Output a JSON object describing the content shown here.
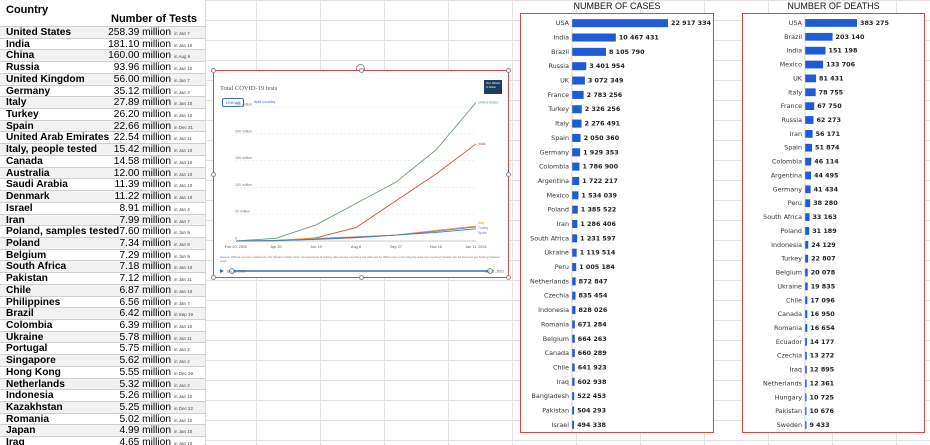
{
  "tests_table": {
    "header_country": "Country",
    "header_tests": "Number of Tests",
    "rows": [
      {
        "country": "United States",
        "value": "258.39 million",
        "date": "in Jan 7"
      },
      {
        "country": "India",
        "value": "181.10 million",
        "date": "in Jan 10"
      },
      {
        "country": "China",
        "value": "160.00 million",
        "date": "in Aug 6"
      },
      {
        "country": "Russia",
        "value": "93.96 million",
        "date": "in Jan 10"
      },
      {
        "country": "United Kingdom",
        "value": "56.00 million",
        "date": "in Jan 7"
      },
      {
        "country": "Germany",
        "value": "35.12 million",
        "date": "in Jan 3"
      },
      {
        "country": "Italy",
        "value": "27.89 million",
        "date": "in Jan 10"
      },
      {
        "country": "Turkey",
        "value": "26.20 million",
        "date": "in Jan 10"
      },
      {
        "country": "Spain",
        "value": "22.66 million",
        "date": "in Dec 31"
      },
      {
        "country": "United Arab Emirates",
        "value": "22.54 million",
        "date": "in Jan 11"
      },
      {
        "country": "Italy, people tested",
        "value": "15.42 million",
        "date": "in Jan 10"
      },
      {
        "country": "Canada",
        "value": "14.58 million",
        "date": "in Jan 10"
      },
      {
        "country": "Australia",
        "value": "12.00 million",
        "date": "in Jan 10"
      },
      {
        "country": "Saudi Arabia",
        "value": "11.39 million",
        "date": "in Jan 10"
      },
      {
        "country": "Denmark",
        "value": "11.22 million",
        "date": "in Jan 10"
      },
      {
        "country": "Israel",
        "value": "8.91 million",
        "date": "in Jan 4"
      },
      {
        "country": "Iran",
        "value": "7.99 million",
        "date": "in Jan 7"
      },
      {
        "country": "Poland, samples tested",
        "value": "7.60 million",
        "date": "in Jan 9"
      },
      {
        "country": "Poland",
        "value": "7.34 million",
        "date": "in Jan 9"
      },
      {
        "country": "Belgium",
        "value": "7.29 million",
        "date": "in Jan 9"
      },
      {
        "country": "South Africa",
        "value": "7.18 million",
        "date": "in Jan 10"
      },
      {
        "country": "Pakistan",
        "value": "7.12 million",
        "date": "in Jan 11"
      },
      {
        "country": "Chile",
        "value": "6.87 million",
        "date": "in Jan 10"
      },
      {
        "country": "Philippines",
        "value": "6.56 million",
        "date": "in Jan 7"
      },
      {
        "country": "Brazil",
        "value": "6.42 million",
        "date": "in Sep 19"
      },
      {
        "country": "Colombia",
        "value": "6.39 million",
        "date": "in Jan 10"
      },
      {
        "country": "Ukraine",
        "value": "5.78 million",
        "date": "in Jan 11"
      },
      {
        "country": "Portugal",
        "value": "5.75 million",
        "date": "in Jan 2"
      },
      {
        "country": "Singapore",
        "value": "5.62 million",
        "date": "in Jan 4"
      },
      {
        "country": "Hong Kong",
        "value": "5.55 million",
        "date": "in Dec 29"
      },
      {
        "country": "Netherlands",
        "value": "5.32 million",
        "date": "in Jan 3"
      },
      {
        "country": "Indonesia",
        "value": "5.26 million",
        "date": "in Jan 10"
      },
      {
        "country": "Kazakhstan",
        "value": "5.25 million",
        "date": "in Dec 22"
      },
      {
        "country": "Romania",
        "value": "5.02 million",
        "date": "in Jan 10"
      },
      {
        "country": "Japan",
        "value": "4.99 million",
        "date": "in Jan 10"
      },
      {
        "country": "Iraq",
        "value": "4.65 million",
        "date": "in Jan 10"
      }
    ]
  },
  "line_chart": {
    "title": "Total COVID-19 tests",
    "logo": "Our World in Data",
    "btn_linear": "LINEAR",
    "btn_log": "LOG",
    "add_countries": "Add country",
    "source": "Source: Official sources collated by Our World in Data. Note: Comparisons of testing data across countries are affected by differences in the way the data are reported. Details can be found at our Testing Dataset page.",
    "start_date": "Jan 21, 2020",
    "end_date": "Jan 11, 2021"
  },
  "chart_data": [
    {
      "type": "line",
      "title": "Total COVID-19 tests",
      "x": [
        "Feb 20, 2020",
        "Apr 20",
        "Jun 19",
        "Aug 8",
        "Sep 27",
        "Nov 16",
        "Jan 11, 2021"
      ],
      "ylim": [
        0,
        250000000
      ],
      "y_ticks": [
        "0",
        "50 million",
        "100 million",
        "150 million",
        "200 million",
        "250 million"
      ],
      "series": [
        {
          "name": "United States",
          "color": "#6a9e6e",
          "values": [
            0,
            5000000,
            30000000,
            70000000,
            110000000,
            170000000,
            258390000
          ]
        },
        {
          "name": "India",
          "color": "#d8463b",
          "values": [
            0,
            300000,
            6000000,
            25000000,
            75000000,
            125000000,
            181100000
          ]
        },
        {
          "name": "Italy",
          "color": "#e0a33a",
          "values": [
            0,
            1500000,
            5000000,
            8000000,
            11000000,
            20000000,
            27890000
          ]
        },
        {
          "name": "Turkey",
          "color": "#9b6bb8",
          "values": [
            0,
            800000,
            3000000,
            6000000,
            11000000,
            18000000,
            26200000
          ]
        },
        {
          "name": "Spain",
          "color": "#3f7fbf",
          "values": [
            0,
            900000,
            3500000,
            7000000,
            11000000,
            16000000,
            22660000
          ]
        }
      ]
    },
    {
      "type": "bar",
      "title": "NUMBER OF CASES",
      "categories": [
        "USA",
        "India",
        "Brazil",
        "Russia",
        "UK",
        "France",
        "Turkey",
        "Italy",
        "Spain",
        "Germany",
        "Colombia",
        "Argentina",
        "Mexico",
        "Poland",
        "Iran",
        "South Africa",
        "Ukraine",
        "Peru",
        "Netherlands",
        "Czechia",
        "Indonesia",
        "Romania",
        "Belgium",
        "Canada",
        "Chile",
        "Iraq",
        "Bangladesh",
        "Pakistan",
        "Israel"
      ],
      "values": [
        22917334,
        10467431,
        8105790,
        3401954,
        3072349,
        2783256,
        2326256,
        2276491,
        2050360,
        1929353,
        1786900,
        1722217,
        1534039,
        1385522,
        1286406,
        1231597,
        1119514,
        1005184,
        872847,
        835454,
        828026,
        671284,
        664263,
        660289,
        641923,
        602938,
        522453,
        504293,
        494338
      ],
      "labels": [
        "22 917 334",
        "10 467 431",
        "8 105 790",
        "3 401 954",
        "3 072 349",
        "2 783 256",
        "2 326 256",
        "2 276 491",
        "2 050 360",
        "1 929 353",
        "1 786 900",
        "1 722 217",
        "1 534 039",
        "1 385 522",
        "1 286 406",
        "1 231 597",
        "1 119 514",
        "1 005 184",
        "872 847",
        "835 454",
        "828 026",
        "671 284",
        "664 263",
        "660 289",
        "641 923",
        "602 938",
        "522 453",
        "504 293",
        "494 338"
      ],
      "color": "#1f5bd6"
    },
    {
      "type": "bar",
      "title": "NUMBER OF DEATHS",
      "categories": [
        "USA",
        "Brazil",
        "India",
        "Mexico",
        "UK",
        "Italy",
        "France",
        "Russia",
        "Iran",
        "Spain",
        "Colombia",
        "Argentina",
        "Germany",
        "Peru",
        "South Africa",
        "Poland",
        "Indonesia",
        "Turkey",
        "Belgium",
        "Ukraine",
        "Chile",
        "Canada",
        "Romania",
        "Ecuador",
        "Czechia",
        "Iraq",
        "Netherlands",
        "Hungary",
        "Pakistan",
        "Sweden"
      ],
      "values": [
        383275,
        203140,
        151198,
        133706,
        81431,
        78755,
        67750,
        62273,
        56171,
        51874,
        46114,
        44495,
        41434,
        38280,
        33163,
        31189,
        24129,
        22807,
        20078,
        19835,
        17096,
        16950,
        16654,
        14177,
        13272,
        12895,
        12361,
        10725,
        10676,
        9433
      ],
      "labels": [
        "383 275",
        "203 140",
        "151 198",
        "133 706",
        "81 431",
        "78 755",
        "67 750",
        "62 273",
        "56 171",
        "51 874",
        "46 114",
        "44 495",
        "41 434",
        "38 280",
        "33 163",
        "31 189",
        "24 129",
        "22 807",
        "20 078",
        "19 835",
        "17 096",
        "16 950",
        "16 654",
        "14 177",
        "13 272",
        "12 895",
        "12 361",
        "10 725",
        "10 676",
        "9 433"
      ],
      "color": "#1f5bd6"
    }
  ]
}
